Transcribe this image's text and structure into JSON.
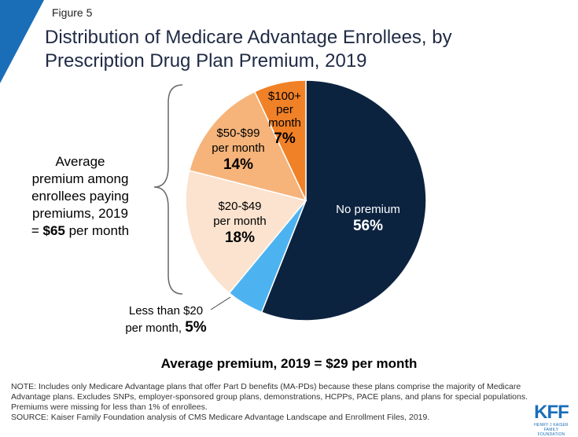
{
  "figure_label": "Figure 5",
  "title": "Distribution of Medicare Advantage Enrollees, by Prescription Drug Plan Premium, 2019",
  "chart_data": {
    "type": "pie",
    "start_angle_deg": 0,
    "direction": "clockwise",
    "slices": [
      {
        "key": "none",
        "line1": "No premium",
        "line2": "",
        "line3": "",
        "pct_text": "56%",
        "value": 56,
        "color": "#0c2340",
        "text_color": "#ffffff"
      },
      {
        "key": "lt20",
        "line1": "Less than $20",
        "line2": "per month,",
        "line3": "",
        "pct_text": "5%",
        "value": 5,
        "color": "#4db3f0",
        "text_color": "#000000"
      },
      {
        "key": "20_49",
        "line1": "$20-$49",
        "line2": "per month",
        "line3": "",
        "pct_text": "18%",
        "value": 18,
        "color": "#fbe3cf",
        "text_color": "#000000"
      },
      {
        "key": "50_99",
        "line1": "$50-$99",
        "line2": "per month",
        "line3": "",
        "pct_text": "14%",
        "value": 14,
        "color": "#f6b47a",
        "text_color": "#000000"
      },
      {
        "key": "100p",
        "line1": "$100+",
        "line2": "per",
        "line3": "month",
        "pct_text": "7%",
        "value": 7,
        "color": "#f08127",
        "text_color": "#000000"
      }
    ]
  },
  "avg_note": {
    "line1": "Average",
    "line2": "premium among",
    "line3": "enrollees paying",
    "line4": "premiums, 2019",
    "line5_prefix": "= ",
    "line5_bold": "$65",
    "line5_suffix": " per month"
  },
  "footer_avg": "Average premium, 2019 = $29 per month",
  "notes": {
    "note": "NOTE: Includes only Medicare Advantage plans that offer Part D benefits (MA-PDs) because these plans comprise the majority of Medicare Advantage plans. Excludes SNPs, employer-sponsored group plans, demonstrations, HCPPs, PACE plans, and plans for special populations. Premiums were missing for less than 1% of enrollees.",
    "source": "SOURCE: Kaiser Family Foundation analysis of CMS Medicare Advantage Landscape and Enrollment Files, 2019."
  },
  "logo": {
    "main": "KFF",
    "sub1": "HENRY J KAISER",
    "sub2": "FAMILY FOUNDATION"
  },
  "colors": {
    "accent_blue": "#1a6eb8",
    "title": "#1f2a44"
  }
}
